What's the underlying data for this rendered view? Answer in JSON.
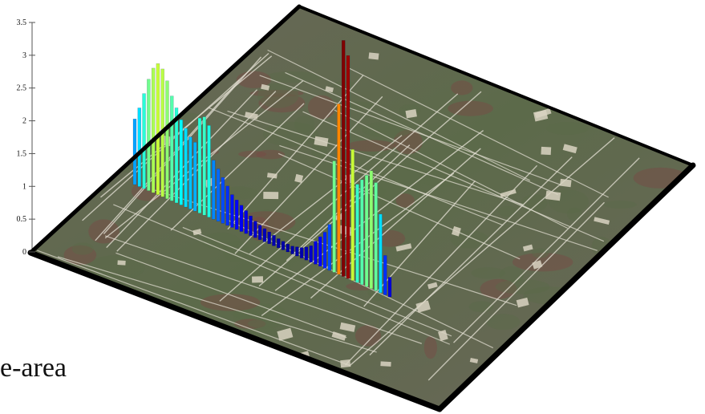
{
  "caption": "e-area",
  "colors": {
    "terrain_base": "#6b675a",
    "terrain_green": "#5c6a4a",
    "terrain_red": "#7a4a45",
    "road": "#e6e2d6",
    "frame": "#000000"
  },
  "chart_data": {
    "type": "bar",
    "title": "",
    "xlabel": "",
    "ylabel": "",
    "ylim": [
      0,
      3.5
    ],
    "yticks": [
      "0",
      "0.5",
      "1",
      "1.5",
      "2",
      "2.5",
      "3",
      "3.5"
    ],
    "ytick_values": [
      0,
      0.5,
      1,
      1.5,
      2,
      2.5,
      3,
      3.5
    ],
    "grid": false,
    "colormap": "jet",
    "series": [
      {
        "values": [
          1.0,
          1.2,
          1.45,
          1.7,
          1.9,
          2.0,
          1.95,
          1.8,
          1.6,
          1.45,
          1.3,
          1.2,
          1.1,
          1.05,
          1.45,
          1.5,
          1.4,
          0.9,
          0.8,
          0.7,
          0.6,
          0.5,
          0.45,
          0.4,
          0.35,
          0.3,
          0.25,
          0.22,
          0.2,
          0.18,
          0.16,
          0.14,
          0.13,
          0.12,
          0.12,
          0.14,
          0.16,
          0.2,
          0.25,
          0.35,
          0.45,
          0.55,
          0.7,
          1.7,
          2.6,
          3.6,
          3.4,
          2.0,
          1.5,
          1.6,
          1.7,
          1.8,
          1.65,
          1.2,
          0.6,
          0.3
        ]
      }
    ]
  }
}
